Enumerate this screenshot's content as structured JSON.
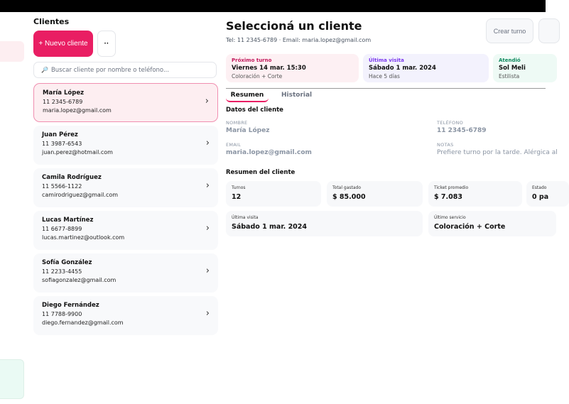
{
  "sidebar": {
    "title": "Clientes",
    "new_button": "+ Nuevo cliente",
    "more_button": "··",
    "search_placeholder": "Buscar cliente por nombre o teléfono...",
    "clients": [
      {
        "name": "María López",
        "phone": "11 2345-6789",
        "email": "maria.lopez@gmail.com"
      },
      {
        "name": "Juan Pérez",
        "phone": "11 3987-6543",
        "email": "juan.perez@hotmail.com"
      },
      {
        "name": "Camila Rodríguez",
        "phone": "11 5566-1122",
        "email": "camirodriguez@gmail.com"
      },
      {
        "name": "Lucas Martínez",
        "phone": "11 6677-8899",
        "email": "lucas.martinez@outlook.com"
      },
      {
        "name": "Sofía González",
        "phone": "11 2233-4455",
        "email": "sofiagonzalez@gmail.com"
      },
      {
        "name": "Diego Fernández",
        "phone": "11 7788-9900",
        "email": "diego.fernandez@gmail.com"
      }
    ]
  },
  "header": {
    "title": "Seleccioná un cliente",
    "subtitle": "Tel: 11 2345-6789 · Email: maria.lopez@gmail.com",
    "create_button": "Crear turno"
  },
  "info_cards": [
    {
      "label": "Próximo turno",
      "value": "Viernes 14 mar. 15:30",
      "sub": "Coloración + Corte",
      "bg": "#fdf0f3",
      "color": "#c2185b"
    },
    {
      "label": "Última visita",
      "value": "Sábado 1 mar. 2024",
      "sub": "Hace 5 días",
      "bg": "#f3f2fd",
      "color": "#7c3aed"
    },
    {
      "label": "Atendió",
      "value": "Sol Meli",
      "sub": "Estilista",
      "bg": "#eefaf5",
      "color": "#0f8a5f"
    }
  ],
  "tabs": [
    "Resumen",
    "Historial"
  ],
  "details": {
    "title": "Datos del cliente",
    "name_label": "NOMBRE",
    "name": "María López",
    "phone_label": "TELÉFONO",
    "phone": "11 2345-6789",
    "email_label": "EMAIL",
    "email": "maria.lopez@gmail.com",
    "notes_label": "NOTAS",
    "notes": "Prefiere turno por la tarde. Alérgica al"
  },
  "summary": {
    "title": "Resumen del cliente",
    "stats": [
      {
        "label": "Turnos",
        "value": "12"
      },
      {
        "label": "Total gastado",
        "value": "$ 85.000"
      },
      {
        "label": "Ticket promedio",
        "value": "$ 7.083"
      },
      {
        "label": "Estado",
        "value": "0 pa"
      },
      {
        "label": "Última visita",
        "value": "Sábado 1 mar. 2024"
      },
      {
        "label": "Último servicio",
        "value": "Coloración + Corte"
      }
    ]
  }
}
